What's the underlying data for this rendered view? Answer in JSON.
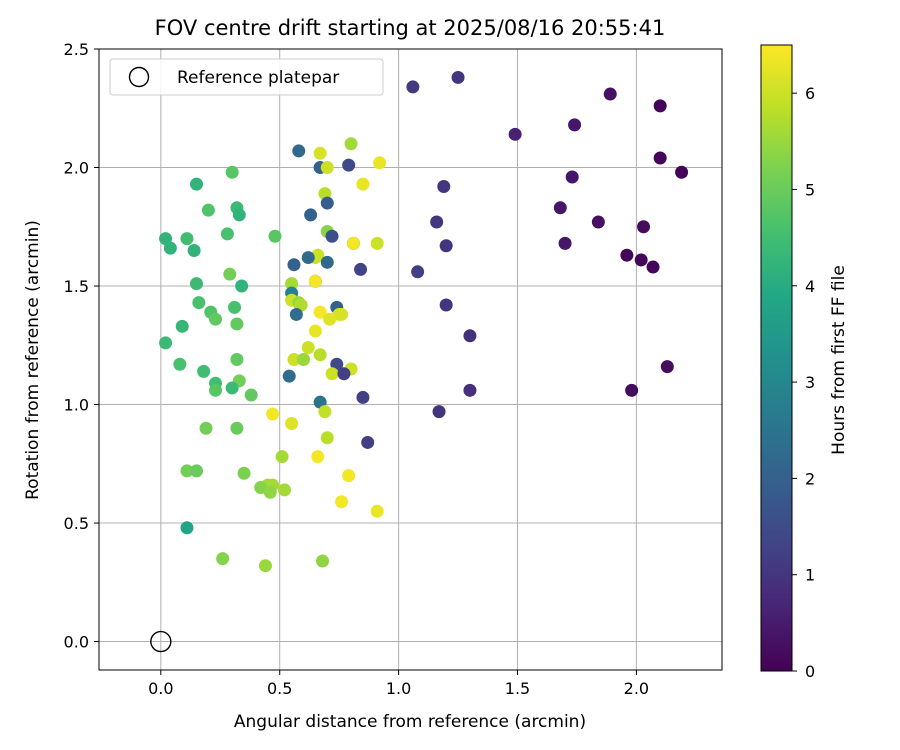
{
  "chart_data": {
    "type": "scatter",
    "title": "FOV centre drift starting at 2025/08/16 20:55:41",
    "xlabel": "Angular distance from reference (arcmin)",
    "ylabel": "Rotation from reference (arcmin)",
    "xlim": [
      -0.26,
      2.36
    ],
    "ylim": [
      -0.12,
      2.5
    ],
    "x_ticks": [
      "0.0",
      "0.5",
      "1.0",
      "1.5",
      "2.0"
    ],
    "y_ticks": [
      "0.0",
      "0.5",
      "1.0",
      "1.5",
      "2.0",
      "2.5"
    ],
    "grid": true,
    "legend": {
      "position": "top-left",
      "entries": [
        "Reference platepar"
      ]
    },
    "reference_point": {
      "x": 0.0,
      "y": 0.0,
      "label": "Reference platepar"
    },
    "colorbar": {
      "label": "Hours from first FF file",
      "range": [
        0,
        6.5
      ],
      "ticks": [
        "0",
        "1",
        "2",
        "3",
        "4",
        "5",
        "6"
      ],
      "colormap": "viridis"
    },
    "points": [
      {
        "x": 1.25,
        "y": 2.38,
        "c": 1.0
      },
      {
        "x": 1.06,
        "y": 2.34,
        "c": 1.1
      },
      {
        "x": 1.89,
        "y": 2.31,
        "c": 0.3
      },
      {
        "x": 2.1,
        "y": 2.26,
        "c": 0.1
      },
      {
        "x": 1.74,
        "y": 2.18,
        "c": 0.4
      },
      {
        "x": 1.49,
        "y": 2.14,
        "c": 0.6
      },
      {
        "x": 2.1,
        "y": 2.04,
        "c": 0.1
      },
      {
        "x": 2.19,
        "y": 1.98,
        "c": 0.05
      },
      {
        "x": 1.73,
        "y": 1.96,
        "c": 0.4
      },
      {
        "x": 1.19,
        "y": 1.92,
        "c": 1.0
      },
      {
        "x": 1.68,
        "y": 1.83,
        "c": 0.4
      },
      {
        "x": 1.84,
        "y": 1.77,
        "c": 0.3
      },
      {
        "x": 1.16,
        "y": 1.77,
        "c": 1.0
      },
      {
        "x": 2.03,
        "y": 1.75,
        "c": 0.2
      },
      {
        "x": 1.7,
        "y": 1.68,
        "c": 0.4
      },
      {
        "x": 1.2,
        "y": 1.67,
        "c": 1.0
      },
      {
        "x": 1.96,
        "y": 1.63,
        "c": 0.1
      },
      {
        "x": 2.02,
        "y": 1.61,
        "c": 0.1
      },
      {
        "x": 2.07,
        "y": 1.58,
        "c": 0.1
      },
      {
        "x": 1.08,
        "y": 1.56,
        "c": 1.2
      },
      {
        "x": 1.2,
        "y": 1.42,
        "c": 1.0
      },
      {
        "x": 1.3,
        "y": 1.29,
        "c": 0.9
      },
      {
        "x": 2.13,
        "y": 1.16,
        "c": 0.2
      },
      {
        "x": 1.3,
        "y": 1.06,
        "c": 0.9
      },
      {
        "x": 1.98,
        "y": 1.06,
        "c": 0.2
      },
      {
        "x": 1.17,
        "y": 0.97,
        "c": 1.0
      },
      {
        "x": 0.58,
        "y": 2.07,
        "c": 2.2
      },
      {
        "x": 0.67,
        "y": 2.06,
        "c": 6.1
      },
      {
        "x": 0.8,
        "y": 2.1,
        "c": 5.6
      },
      {
        "x": 0.67,
        "y": 2.0,
        "c": 2.0
      },
      {
        "x": 0.79,
        "y": 2.01,
        "c": 1.4
      },
      {
        "x": 0.92,
        "y": 2.02,
        "c": 6.3
      },
      {
        "x": 0.7,
        "y": 2.0,
        "c": 6.0
      },
      {
        "x": 0.85,
        "y": 1.93,
        "c": 6.3
      },
      {
        "x": 0.69,
        "y": 1.89,
        "c": 5.8
      },
      {
        "x": 0.7,
        "y": 1.85,
        "c": 1.9
      },
      {
        "x": 0.63,
        "y": 1.8,
        "c": 2.0
      },
      {
        "x": 0.7,
        "y": 1.73,
        "c": 5.3
      },
      {
        "x": 0.72,
        "y": 1.71,
        "c": 1.6
      },
      {
        "x": 0.81,
        "y": 1.68,
        "c": 1.4
      },
      {
        "x": 0.81,
        "y": 1.68,
        "c": 6.4
      },
      {
        "x": 0.91,
        "y": 1.68,
        "c": 6.0
      },
      {
        "x": 0.66,
        "y": 1.63,
        "c": 6.0
      },
      {
        "x": 0.65,
        "y": 1.62,
        "c": 6.0
      },
      {
        "x": 0.62,
        "y": 1.62,
        "c": 2.2
      },
      {
        "x": 0.56,
        "y": 1.59,
        "c": 2.0
      },
      {
        "x": 0.7,
        "y": 1.6,
        "c": 2.2
      },
      {
        "x": 0.84,
        "y": 1.57,
        "c": 1.3
      },
      {
        "x": 0.65,
        "y": 1.52,
        "c": 1.8
      },
      {
        "x": 0.65,
        "y": 1.52,
        "c": 6.4
      },
      {
        "x": 0.55,
        "y": 1.51,
        "c": 5.6
      },
      {
        "x": 0.55,
        "y": 1.47,
        "c": 2.8
      },
      {
        "x": 0.55,
        "y": 1.44,
        "c": 6.0
      },
      {
        "x": 0.58,
        "y": 1.43,
        "c": 5.5
      },
      {
        "x": 0.59,
        "y": 1.42,
        "c": 5.7
      },
      {
        "x": 0.74,
        "y": 1.41,
        "c": 2.0
      },
      {
        "x": 0.57,
        "y": 1.38,
        "c": 2.3
      },
      {
        "x": 0.67,
        "y": 1.39,
        "c": 6.4
      },
      {
        "x": 0.75,
        "y": 1.38,
        "c": 6.2
      },
      {
        "x": 0.76,
        "y": 1.38,
        "c": 6.1
      },
      {
        "x": 0.71,
        "y": 1.36,
        "c": 6.2
      },
      {
        "x": 0.65,
        "y": 1.31,
        "c": 6.3
      },
      {
        "x": 0.62,
        "y": 1.24,
        "c": 6.0
      },
      {
        "x": 0.67,
        "y": 1.21,
        "c": 5.8
      },
      {
        "x": 0.56,
        "y": 1.19,
        "c": 6.0
      },
      {
        "x": 0.6,
        "y": 1.19,
        "c": 5.5
      },
      {
        "x": 0.74,
        "y": 1.17,
        "c": 1.5
      },
      {
        "x": 0.8,
        "y": 1.15,
        "c": 6.0
      },
      {
        "x": 0.72,
        "y": 1.13,
        "c": 6.0
      },
      {
        "x": 0.77,
        "y": 1.13,
        "c": 1.2
      },
      {
        "x": 0.54,
        "y": 1.12,
        "c": 2.3
      },
      {
        "x": 0.67,
        "y": 1.01,
        "c": 2.5
      },
      {
        "x": 0.85,
        "y": 1.03,
        "c": 1.2
      },
      {
        "x": 0.69,
        "y": 0.97,
        "c": 5.9
      },
      {
        "x": 0.47,
        "y": 0.96,
        "c": 6.4
      },
      {
        "x": 0.55,
        "y": 0.92,
        "c": 6.2
      },
      {
        "x": 0.7,
        "y": 0.86,
        "c": 5.8
      },
      {
        "x": 0.87,
        "y": 0.84,
        "c": 1.2
      },
      {
        "x": 0.66,
        "y": 0.78,
        "c": 6.4
      },
      {
        "x": 0.51,
        "y": 0.78,
        "c": 5.6
      },
      {
        "x": 0.79,
        "y": 0.7,
        "c": 6.4
      },
      {
        "x": 0.45,
        "y": 0.66,
        "c": 5.6
      },
      {
        "x": 0.47,
        "y": 0.66,
        "c": 5.6
      },
      {
        "x": 0.42,
        "y": 0.65,
        "c": 5.3
      },
      {
        "x": 0.46,
        "y": 0.63,
        "c": 5.4
      },
      {
        "x": 0.52,
        "y": 0.64,
        "c": 5.6
      },
      {
        "x": 0.76,
        "y": 0.59,
        "c": 6.4
      },
      {
        "x": 0.91,
        "y": 0.55,
        "c": 6.3
      },
      {
        "x": 0.68,
        "y": 0.34,
        "c": 5.4
      },
      {
        "x": 0.44,
        "y": 0.32,
        "c": 5.5
      },
      {
        "x": 0.26,
        "y": 0.35,
        "c": 5.3
      },
      {
        "x": 0.15,
        "y": 1.93,
        "c": 4.2
      },
      {
        "x": 0.3,
        "y": 1.98,
        "c": 4.8
      },
      {
        "x": 0.2,
        "y": 1.82,
        "c": 4.7
      },
      {
        "x": 0.32,
        "y": 1.83,
        "c": 4.4
      },
      {
        "x": 0.33,
        "y": 1.8,
        "c": 4.2
      },
      {
        "x": 0.28,
        "y": 1.72,
        "c": 4.6
      },
      {
        "x": 0.48,
        "y": 1.71,
        "c": 4.8
      },
      {
        "x": 0.02,
        "y": 1.7,
        "c": 4.2
      },
      {
        "x": 0.11,
        "y": 1.7,
        "c": 4.5
      },
      {
        "x": 0.04,
        "y": 1.66,
        "c": 4.2
      },
      {
        "x": 0.14,
        "y": 1.65,
        "c": 4.2
      },
      {
        "x": 0.29,
        "y": 1.55,
        "c": 5.1
      },
      {
        "x": 0.15,
        "y": 1.51,
        "c": 4.4
      },
      {
        "x": 0.34,
        "y": 1.5,
        "c": 4.2
      },
      {
        "x": 0.16,
        "y": 1.43,
        "c": 4.6
      },
      {
        "x": 0.31,
        "y": 1.41,
        "c": 4.6
      },
      {
        "x": 0.21,
        "y": 1.39,
        "c": 4.7
      },
      {
        "x": 0.23,
        "y": 1.36,
        "c": 4.9
      },
      {
        "x": 0.09,
        "y": 1.33,
        "c": 4.3
      },
      {
        "x": 0.32,
        "y": 1.34,
        "c": 4.9
      },
      {
        "x": 0.02,
        "y": 1.26,
        "c": 4.4
      },
      {
        "x": 0.32,
        "y": 1.19,
        "c": 4.9
      },
      {
        "x": 0.08,
        "y": 1.17,
        "c": 4.6
      },
      {
        "x": 0.18,
        "y": 1.14,
        "c": 4.5
      },
      {
        "x": 0.33,
        "y": 1.1,
        "c": 5.1
      },
      {
        "x": 0.23,
        "y": 1.09,
        "c": 4.5
      },
      {
        "x": 0.3,
        "y": 1.07,
        "c": 4.4
      },
      {
        "x": 0.23,
        "y": 1.06,
        "c": 4.8
      },
      {
        "x": 0.38,
        "y": 1.04,
        "c": 4.9
      },
      {
        "x": 0.19,
        "y": 0.9,
        "c": 5.1
      },
      {
        "x": 0.32,
        "y": 0.9,
        "c": 5.0
      },
      {
        "x": 0.11,
        "y": 0.72,
        "c": 5.1
      },
      {
        "x": 0.15,
        "y": 0.72,
        "c": 5.0
      },
      {
        "x": 0.35,
        "y": 0.71,
        "c": 5.2
      },
      {
        "x": 0.11,
        "y": 0.48,
        "c": 3.8
      }
    ]
  }
}
